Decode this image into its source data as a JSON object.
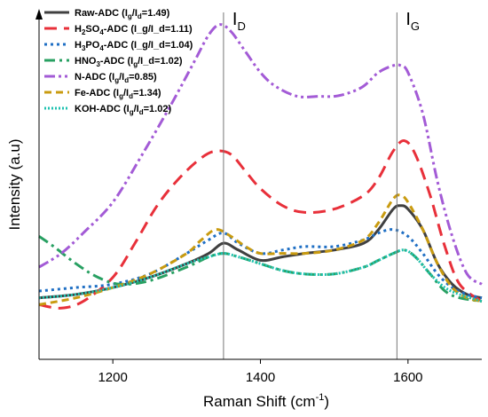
{
  "chart_data": {
    "type": "line",
    "xlabel": "Raman Shift (cm",
    "xlabel_sup": "-1",
    "xlabel_end": ")",
    "ylabel": "Intensity (a.u)",
    "xlim": [
      1100,
      1700
    ],
    "ylim": [
      0,
      1
    ],
    "xticks": [
      1200,
      1400,
      1600
    ],
    "yticks_shown": false,
    "grid": false,
    "legend_position": "top-left",
    "annotations": [
      {
        "text": "I",
        "sub": "D",
        "x": 1350
      },
      {
        "text": "I",
        "sub": "G",
        "x": 1585
      }
    ],
    "series": [
      {
        "name": "Raw-ADC (I",
        "sub1": "g",
        "mid": "/I",
        "sub2": "d",
        "tail": "=1.49)",
        "color": "#404040",
        "dash": "solid",
        "x": [
          1100,
          1150,
          1200,
          1250,
          1300,
          1330,
          1350,
          1370,
          1400,
          1430,
          1460,
          1500,
          1540,
          1560,
          1580,
          1590,
          1600,
          1620,
          1640,
          1660,
          1680,
          1700
        ],
        "y": [
          0.18,
          0.19,
          0.21,
          0.24,
          0.28,
          0.31,
          0.34,
          0.32,
          0.29,
          0.3,
          0.31,
          0.32,
          0.34,
          0.38,
          0.44,
          0.45,
          0.44,
          0.38,
          0.28,
          0.22,
          0.19,
          0.18
        ]
      },
      {
        "name": "H",
        "sub1": "2",
        "mid": "SO",
        "sub2": "4",
        "tail": "-ADC (I_g/I_d=1.11)",
        "color": "#e8303a",
        "dash": "long",
        "x": [
          1100,
          1130,
          1160,
          1200,
          1230,
          1260,
          1290,
          1320,
          1340,
          1360,
          1380,
          1400,
          1430,
          1460,
          1500,
          1540,
          1560,
          1580,
          1595,
          1610,
          1630,
          1650,
          1670,
          1700
        ],
        "y": [
          0.16,
          0.15,
          0.17,
          0.24,
          0.34,
          0.45,
          0.53,
          0.59,
          0.61,
          0.6,
          0.55,
          0.5,
          0.45,
          0.43,
          0.44,
          0.48,
          0.53,
          0.61,
          0.64,
          0.6,
          0.48,
          0.33,
          0.22,
          0.17
        ]
      },
      {
        "name": "H",
        "sub1": "3",
        "mid": "PO",
        "sub2": "4",
        "tail": "-ADC (I_g/I_d=1.04)",
        "color": "#1f6fc4",
        "dash": "dotted",
        "x": [
          1100,
          1150,
          1200,
          1250,
          1300,
          1330,
          1350,
          1370,
          1400,
          1430,
          1460,
          1500,
          1540,
          1560,
          1580,
          1600,
          1620,
          1640,
          1660,
          1680,
          1700
        ],
        "y": [
          0.2,
          0.21,
          0.22,
          0.25,
          0.31,
          0.35,
          0.37,
          0.34,
          0.31,
          0.32,
          0.33,
          0.33,
          0.35,
          0.37,
          0.38,
          0.36,
          0.31,
          0.25,
          0.21,
          0.19,
          0.18
        ]
      },
      {
        "name": "HNO",
        "sub1": "3",
        "mid": "-ADC (I",
        "sub2": "g",
        "tail": "/I_d=1.02)",
        "color": "#28a062",
        "dash": "dashdot",
        "x": [
          1100,
          1120,
          1150,
          1180,
          1210,
          1250,
          1300,
          1330,
          1350,
          1370,
          1400,
          1430,
          1460,
          1500,
          1540,
          1560,
          1580,
          1595,
          1610,
          1630,
          1650,
          1670,
          1700
        ],
        "y": [
          0.36,
          0.33,
          0.28,
          0.24,
          0.22,
          0.23,
          0.27,
          0.3,
          0.31,
          0.3,
          0.28,
          0.26,
          0.25,
          0.25,
          0.27,
          0.29,
          0.31,
          0.32,
          0.3,
          0.25,
          0.2,
          0.18,
          0.17
        ]
      },
      {
        "name": "N-ADC (I",
        "sub1": "g",
        "mid": "/I",
        "sub2": "d",
        "tail": "=0.85)",
        "color": "#a35bd6",
        "dash": "dashdotdot",
        "x": [
          1100,
          1130,
          1160,
          1200,
          1240,
          1280,
          1310,
          1330,
          1345,
          1360,
          1380,
          1400,
          1420,
          1450,
          1480,
          1500,
          1520,
          1540,
          1560,
          1580,
          1590,
          1600,
          1620,
          1640,
          1660,
          1680,
          1700
        ],
        "y": [
          0.27,
          0.31,
          0.37,
          0.46,
          0.6,
          0.75,
          0.87,
          0.95,
          0.98,
          0.96,
          0.9,
          0.84,
          0.8,
          0.77,
          0.77,
          0.77,
          0.78,
          0.8,
          0.84,
          0.86,
          0.86,
          0.84,
          0.72,
          0.52,
          0.36,
          0.25,
          0.22
        ]
      },
      {
        "name": "Fe-ADC (I",
        "sub1": "g",
        "mid": "/I",
        "sub2": "d",
        "tail": "=1.34)",
        "color": "#c99b10",
        "dash": "medium",
        "x": [
          1100,
          1150,
          1200,
          1250,
          1300,
          1320,
          1340,
          1360,
          1380,
          1400,
          1430,
          1460,
          1500,
          1540,
          1560,
          1580,
          1590,
          1600,
          1620,
          1640,
          1660,
          1680,
          1700
        ],
        "y": [
          0.16,
          0.18,
          0.21,
          0.25,
          0.31,
          0.35,
          0.38,
          0.36,
          0.33,
          0.31,
          0.31,
          0.31,
          0.32,
          0.35,
          0.4,
          0.47,
          0.48,
          0.46,
          0.38,
          0.28,
          0.21,
          0.18,
          0.17
        ]
      },
      {
        "name": "KOH-ADC (I",
        "sub1": "g",
        "mid": "/I",
        "sub2": "d",
        "tail": "=1.02)",
        "color": "#1fc2b0",
        "dash": "dense",
        "x": [
          1100,
          1150,
          1200,
          1250,
          1300,
          1330,
          1350,
          1370,
          1400,
          1430,
          1460,
          1500,
          1540,
          1560,
          1580,
          1595,
          1610,
          1630,
          1650,
          1670,
          1700
        ],
        "y": [
          0.18,
          0.19,
          0.21,
          0.24,
          0.28,
          0.3,
          0.31,
          0.3,
          0.28,
          0.26,
          0.25,
          0.25,
          0.27,
          0.29,
          0.31,
          0.32,
          0.3,
          0.25,
          0.21,
          0.19,
          0.17
        ]
      }
    ]
  }
}
